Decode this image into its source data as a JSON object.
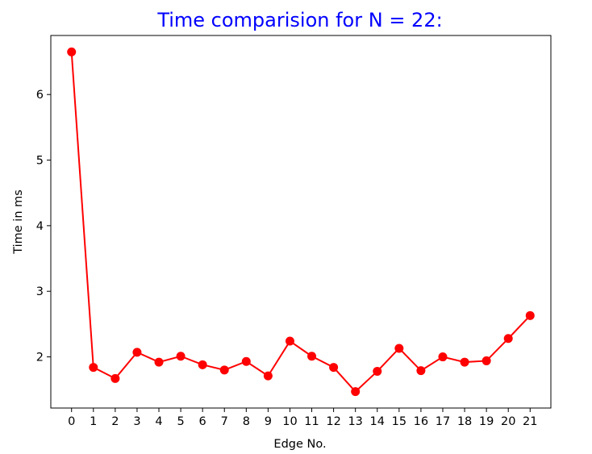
{
  "chart_data": {
    "type": "line",
    "title": "Time comparision for N = 22:",
    "title_color": "#0000ff",
    "xlabel": "Edge No.",
    "ylabel": "Time in ms",
    "x": [
      0,
      1,
      2,
      3,
      4,
      5,
      6,
      7,
      8,
      9,
      10,
      11,
      12,
      13,
      14,
      15,
      16,
      17,
      18,
      19,
      20,
      21
    ],
    "x_tick_labels": [
      "0",
      "1",
      "2",
      "3",
      "4",
      "5",
      "6",
      "7",
      "8",
      "9",
      "10",
      "11",
      "12",
      "13",
      "14",
      "15",
      "16",
      "17",
      "18",
      "19",
      "20",
      "21"
    ],
    "y_ticks": [
      2,
      3,
      4,
      5,
      6
    ],
    "y_tick_labels": [
      "2",
      "3",
      "4",
      "5",
      "6"
    ],
    "xlim": [
      -0.95,
      21.95
    ],
    "ylim": [
      1.22,
      6.9
    ],
    "grid": false,
    "series": [
      {
        "color": "#ff0000",
        "marker": "circle",
        "values": [
          6.65,
          1.84,
          1.67,
          2.07,
          1.92,
          2.01,
          1.88,
          1.8,
          1.93,
          1.71,
          2.24,
          2.01,
          1.84,
          1.47,
          1.78,
          2.13,
          1.79,
          2.0,
          1.92,
          1.94,
          2.28,
          2.63
        ]
      }
    ]
  }
}
